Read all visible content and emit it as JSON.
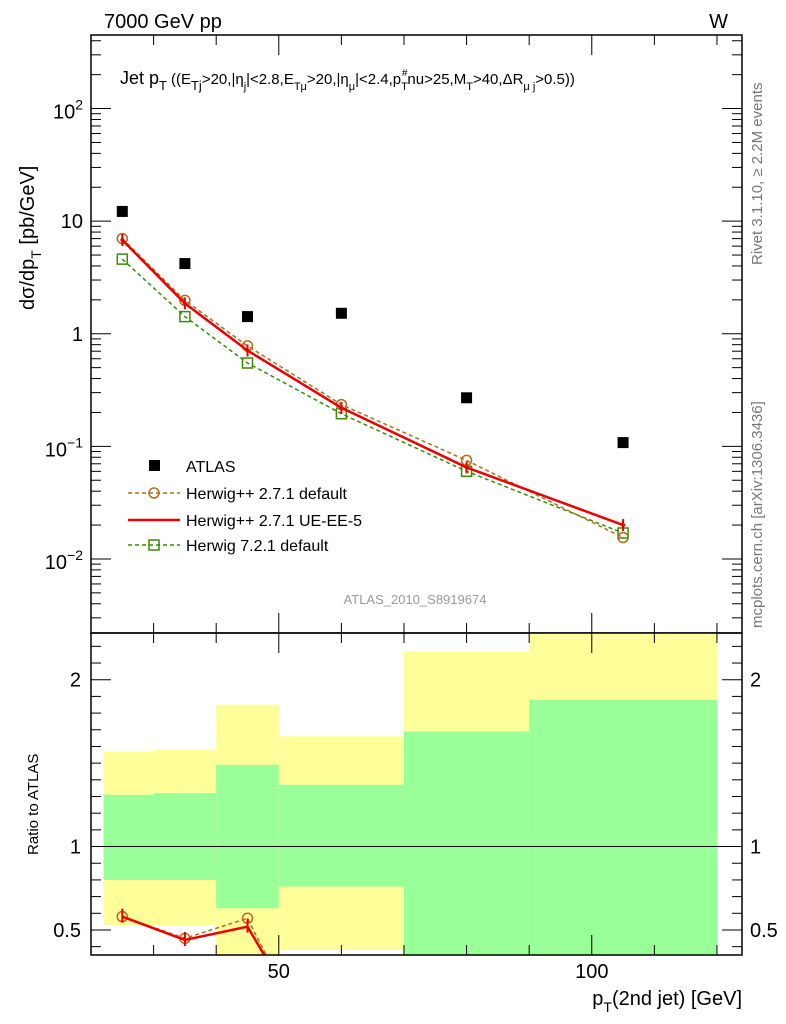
{
  "header": {
    "energy_label": "7000 GeV pp",
    "process_label": "W",
    "side_label_top": "Rivet 3.1.10, ≥ 2.2M events",
    "side_label_bottom": "mcplots.cern.ch [arXiv:1306.3436]",
    "analysis_id": "ATLAS_2010_S8919674"
  },
  "colors": {
    "atlas": "#000000",
    "herwigpp_default": "#b26b1a",
    "herwigpp_ueee5": "#ee0000",
    "herwig72_default": "#3a8a0a",
    "band_inner": "#99ff99",
    "band_outer": "#ffff99"
  },
  "chart_data": [
    {
      "type": "scatter",
      "panel": "main",
      "title": "Jet p_T ((E_Tj>20,|η_j|<2.8,E_Tμ>20,|η_μ|<2.4,p_T^#nu>25,M_T>40,ΔR_μ j>0.5))",
      "title_parts": {
        "t1": "Jet p",
        "t1s": "T",
        "t2": "((E",
        "t2s": "Tj",
        "t3": ">20,|η",
        "t3s": "j",
        "t4": "|<2.8,E",
        "t4s": "Tμ",
        "t5": ">20,|η",
        "t5s": "μ",
        "t6": "|<2.4,p",
        "t6s": "T",
        "t6u": "#",
        "t7": "nu>25,M",
        "t7s": "T",
        "t8": ">40,ΔR",
        "t8s": "μ j",
        "t9": ">0.5))"
      },
      "ylabel": "dσ/dp_T [pb/GeV]",
      "ylabel_parts": {
        "a": "dσ/dp",
        "b": "T",
        "c": " [pb/GeV]"
      },
      "xlim": [
        20,
        124
      ],
      "ylim": [
        0.0022,
        450
      ],
      "yscale": "log",
      "y_ticks": [
        {
          "value": 100,
          "label": "10",
          "exp": "2"
        },
        {
          "value": 10,
          "label": "10",
          "exp": ""
        },
        {
          "value": 1,
          "label": "1",
          "exp": ""
        },
        {
          "value": 0.1,
          "label": "10",
          "exp": "−1"
        },
        {
          "value": 0.01,
          "label": "10",
          "exp": "−2"
        }
      ],
      "legend_position": "bottom-left",
      "series": [
        {
          "name": "ATLAS",
          "marker": "filled-square",
          "x": [
            25,
            35,
            45,
            60,
            80,
            105
          ],
          "y": [
            12.2,
            4.2,
            1.42,
            1.52,
            0.27,
            0.108
          ]
        },
        {
          "name": "Herwig++ 2.7.1 default",
          "marker": "open-circle",
          "style": "dashed",
          "x": [
            25,
            35,
            45,
            60,
            80,
            105
          ],
          "y": [
            7.0,
            1.98,
            0.78,
            0.235,
            0.075,
            0.0155
          ]
        },
        {
          "name": "Herwig++ 2.7.1 UE-EE-5",
          "marker": "line",
          "style": "solid",
          "x": [
            25,
            35,
            45,
            60,
            80,
            105
          ],
          "y": [
            6.8,
            1.86,
            0.71,
            0.22,
            0.065,
            0.02
          ]
        },
        {
          "name": "Herwig 7.2.1 default",
          "marker": "open-square",
          "style": "dashed",
          "x": [
            25,
            35,
            45,
            60,
            80,
            105
          ],
          "y": [
            4.6,
            1.42,
            0.55,
            0.195,
            0.06,
            0.017
          ]
        }
      ]
    },
    {
      "type": "line",
      "panel": "ratio",
      "ylabel": "Ratio to ATLAS",
      "xlabel": "p_T(2nd jet) [GeV]",
      "xlabel_parts": {
        "a": "p",
        "b": "T",
        "c": "(2nd jet) [GeV]"
      },
      "xlim": [
        20,
        124
      ],
      "ylim": [
        0.35,
        2.28
      ],
      "x_ticks": [
        {
          "value": 50,
          "label": "50"
        },
        {
          "value": 100,
          "label": "100"
        }
      ],
      "y_ticks": [
        {
          "value": 0.5,
          "label": "0.5"
        },
        {
          "value": 1,
          "label": "1"
        },
        {
          "value": 2,
          "label": "2"
        }
      ],
      "bands": [
        {
          "x0": 22,
          "x1": 30,
          "outer": [
            0.53,
            1.57
          ],
          "inner": [
            0.8,
            1.31
          ]
        },
        {
          "x0": 30,
          "x1": 40,
          "outer": [
            0.53,
            1.58
          ],
          "inner": [
            0.8,
            1.32
          ]
        },
        {
          "x0": 40,
          "x1": 50,
          "outer": [
            0.35,
            1.85
          ],
          "inner": [
            0.63,
            1.49
          ]
        },
        {
          "x0": 50,
          "x1": 70,
          "outer": [
            0.38,
            1.66
          ],
          "inner": [
            0.76,
            1.37
          ]
        },
        {
          "x0": 70,
          "x1": 90,
          "outer": [
            0.35,
            2.17
          ],
          "inner": [
            0.35,
            1.69
          ]
        },
        {
          "x0": 90,
          "x1": 120,
          "outer": [
            0.35,
            2.28
          ],
          "inner": [
            0.35,
            1.88
          ]
        }
      ],
      "series": [
        {
          "name": "Herwig++ 2.7.1 default",
          "x": [
            25,
            35,
            45,
            50
          ],
          "y": [
            0.58,
            0.45,
            0.57,
            0.2
          ]
        },
        {
          "name": "Herwig++ 2.7.1 UE-EE-5",
          "x": [
            25,
            35,
            45,
            50
          ],
          "y": [
            0.58,
            0.44,
            0.52,
            0.2
          ]
        }
      ]
    }
  ]
}
